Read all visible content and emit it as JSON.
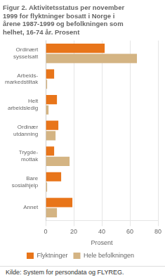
{
  "chart_data": {
    "type": "bar",
    "orientation": "horizontal",
    "title": "Figur 2. Aktivitetsstatus per november\n1999 for flyktninger bosatt i Norge i\nårene 1987-1999 og befolkningen som\nhelhet, 16-74 år. Prosent",
    "categories": [
      "Ordinært\nsysselsatt",
      "Arbeids-\nmarkedstiltak",
      "Helt\narbeidsledig",
      "Ordinær\nutdanning",
      "Trygde-\nmottak",
      "Bare\nsosialhjelp",
      "Annet"
    ],
    "series": [
      {
        "name": "Flyktninger",
        "color": "#E8751A",
        "values": [
          42,
          6,
          8,
          9,
          6,
          11,
          19
        ]
      },
      {
        "name": "Hele befolkningen",
        "color": "#D4B483",
        "values": [
          65,
          1,
          2,
          7,
          17,
          1,
          8
        ]
      }
    ],
    "xlabel": "Prosent",
    "xlim": [
      0,
      80
    ],
    "xticks": [
      0,
      20,
      40,
      60,
      80
    ],
    "grid": true,
    "legend": "bottom",
    "annotations": [
      "Kilde: System for persondata og FLYREG."
    ]
  }
}
